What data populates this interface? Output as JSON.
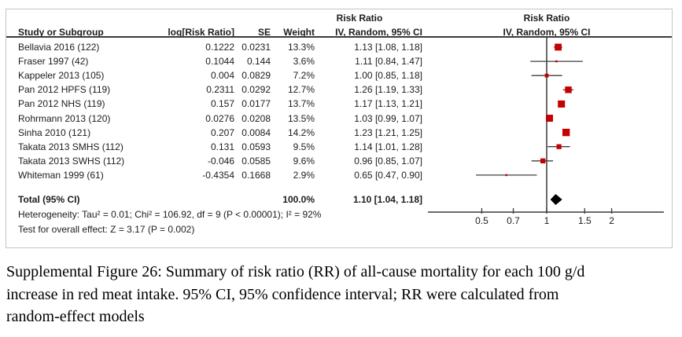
{
  "figure": {
    "header": {
      "effect_top": "Risk Ratio",
      "plot_top": "Risk Ratio",
      "study": "Study or Subgroup",
      "log_rr": "log[Risk Ratio]",
      "se": "SE",
      "weight": "Weight",
      "effect": "IV, Random, 95% CI",
      "plot_effect": "IV, Random, 95% CI"
    },
    "total": {
      "label": "Total (95% CI)",
      "weight": "100.0%",
      "effect": "1.10 [1.04, 1.18]"
    },
    "heterogeneity": "Heterogeneity: Tau² = 0.01; Chi² = 106.92, df = 9 (P < 0.00001); I² = 92%",
    "overall_effect": "Test for overall effect: Z = 3.17 (P = 0.002)"
  },
  "chart_data": {
    "type": "forest",
    "x_scale": "log",
    "axis_ticks": [
      0.5,
      0.7,
      1,
      1.5,
      2
    ],
    "axis_range": [
      0.42,
      2.9
    ],
    "null_line": 1,
    "studies": [
      {
        "name": "Bellavia 2016 (122)",
        "log_rr": "0.1222",
        "se": "0.0231",
        "weight_label": "13.3%",
        "weight": 13.3,
        "effect_label": "1.13 [1.08, 1.18]",
        "rr": 1.13,
        "lo": 1.08,
        "hi": 1.18
      },
      {
        "name": "Fraser 1997 (42)",
        "log_rr": "0.1044",
        "se": "0.144",
        "weight_label": "3.6%",
        "weight": 3.6,
        "effect_label": "1.11 [0.84, 1.47]",
        "rr": 1.11,
        "lo": 0.84,
        "hi": 1.47
      },
      {
        "name": "Kappeler 2013 (105)",
        "log_rr": "0.004",
        "se": "0.0829",
        "weight_label": "7.2%",
        "weight": 7.2,
        "effect_label": "1.00 [0.85, 1.18]",
        "rr": 1.0,
        "lo": 0.85,
        "hi": 1.18
      },
      {
        "name": "Pan 2012 HPFS (119)",
        "log_rr": "0.2311",
        "se": "0.0292",
        "weight_label": "12.7%",
        "weight": 12.7,
        "effect_label": "1.26 [1.19, 1.33]",
        "rr": 1.26,
        "lo": 1.19,
        "hi": 1.33
      },
      {
        "name": "Pan 2012 NHS (119)",
        "log_rr": "0.157",
        "se": "0.0177",
        "weight_label": "13.7%",
        "weight": 13.7,
        "effect_label": "1.17 [1.13, 1.21]",
        "rr": 1.17,
        "lo": 1.13,
        "hi": 1.21
      },
      {
        "name": "Rohrmann 2013 (120)",
        "log_rr": "0.0276",
        "se": "0.0208",
        "weight_label": "13.5%",
        "weight": 13.5,
        "effect_label": "1.03 [0.99, 1.07]",
        "rr": 1.03,
        "lo": 0.99,
        "hi": 1.07
      },
      {
        "name": "Sinha 2010 (121)",
        "log_rr": "0.207",
        "se": "0.0084",
        "weight_label": "14.2%",
        "weight": 14.2,
        "effect_label": "1.23 [1.21, 1.25]",
        "rr": 1.23,
        "lo": 1.21,
        "hi": 1.25
      },
      {
        "name": "Takata 2013 SMHS (112)",
        "log_rr": "0.131",
        "se": "0.0593",
        "weight_label": "9.5%",
        "weight": 9.5,
        "effect_label": "1.14 [1.01, 1.28]",
        "rr": 1.14,
        "lo": 1.01,
        "hi": 1.28
      },
      {
        "name": "Takata 2013 SWHS (112)",
        "log_rr": "-0.046",
        "se": "0.0585",
        "weight_label": "9.6%",
        "weight": 9.6,
        "effect_label": "0.96 [0.85, 1.07]",
        "rr": 0.96,
        "lo": 0.85,
        "hi": 1.07
      },
      {
        "name": "Whiteman 1999 (61)",
        "log_rr": "-0.4354",
        "se": "0.1668",
        "weight_label": "2.9%",
        "weight": 2.9,
        "effect_label": "0.65 [0.47, 0.90]",
        "rr": 0.65,
        "lo": 0.47,
        "hi": 0.9
      }
    ],
    "total": {
      "rr": 1.1,
      "lo": 1.04,
      "hi": 1.18
    }
  },
  "colors": {
    "marker": "#c40000",
    "ci_line": "#3f3f3f",
    "axis": "#3a3a3a",
    "diamond": "#000000",
    "text": "#1c1c1c",
    "border": "#c4c4c4"
  },
  "caption": {
    "lines": [
      "Supplemental Figure 26: Summary of risk ratio (RR) of all-cause mortality for each 100 g/d",
      "increase in red meat intake. 95% CI, 95% confidence interval; RR were calculated from",
      "random-effect models"
    ]
  }
}
